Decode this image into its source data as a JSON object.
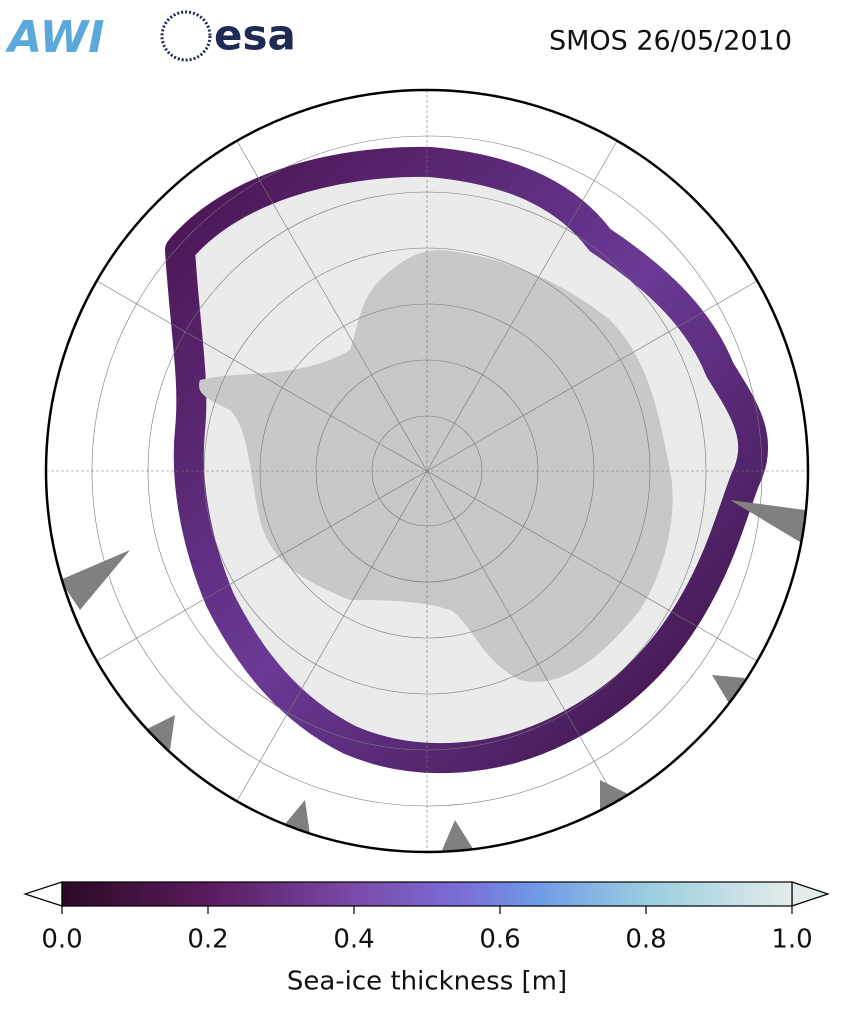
{
  "header": {
    "logos": [
      "AWI",
      "esa"
    ],
    "title": "SMOS 26/05/2010"
  },
  "colorbar": {
    "label": "Sea-ice thickness [m]",
    "lim": [
      0,
      1
    ],
    "ticks": [
      {
        "value": 0,
        "label": "0.0"
      },
      0.2,
      0.4,
      0.6,
      0.8,
      {
        "value": 1,
        "label": "1.0"
      }
    ]
  }
}
